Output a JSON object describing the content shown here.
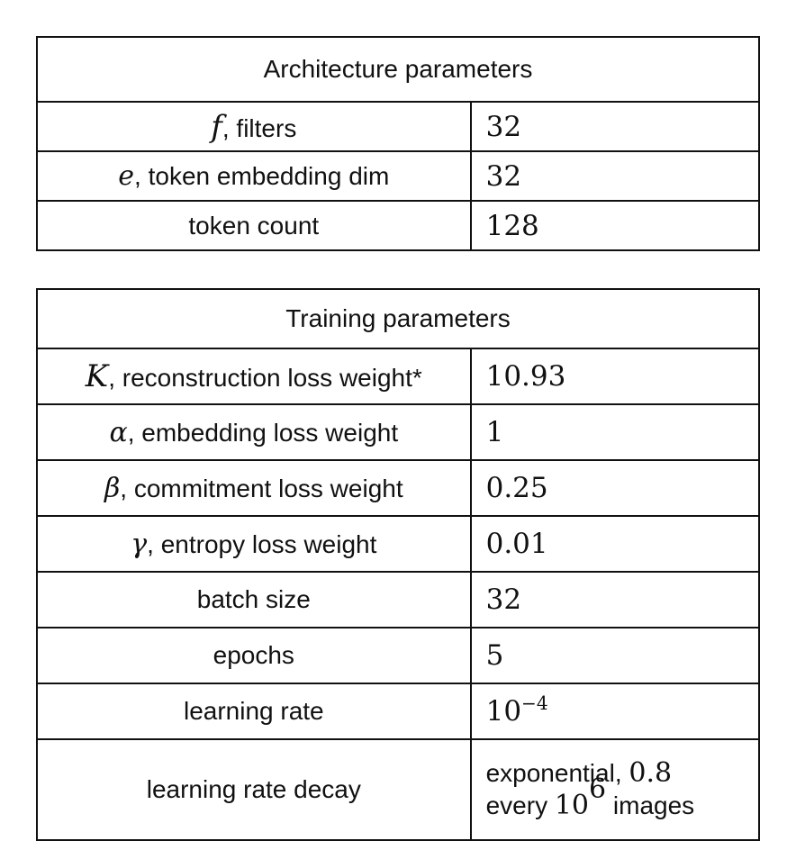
{
  "architecture": {
    "title": "Architecture parameters",
    "rows": [
      {
        "symbol": "f",
        "label": ", filters",
        "value": "32"
      },
      {
        "symbol": "e",
        "label": ", token embedding dim",
        "value": "32"
      },
      {
        "symbol": "",
        "label": "token count",
        "value": "128"
      }
    ]
  },
  "training": {
    "title": "Training parameters",
    "rows": [
      {
        "symbol": "K",
        "label": ", reconstruction loss weight*",
        "value": "10.93"
      },
      {
        "symbol": "α",
        "label": ", embedding loss weight",
        "value": "1"
      },
      {
        "symbol": "β",
        "label": ", commitment loss weight",
        "value": "0.25"
      },
      {
        "symbol": "γ",
        "label": ", entropy loss weight",
        "value": "0.01"
      },
      {
        "symbol": "",
        "label": "batch size",
        "value": "32"
      },
      {
        "symbol": "",
        "label": "epochs",
        "value": "5"
      },
      {
        "symbol": "",
        "label": "learning rate",
        "value_base": "10",
        "value_exp": "−4"
      },
      {
        "symbol": "",
        "label": "learning rate decay",
        "value_line1_text": "exponential, ",
        "value_line1_num": "0.8",
        "value_line2_pre": "every ",
        "value_line2_base": "10",
        "value_line2_exp": "6",
        "value_line2_post": " images"
      }
    ]
  }
}
